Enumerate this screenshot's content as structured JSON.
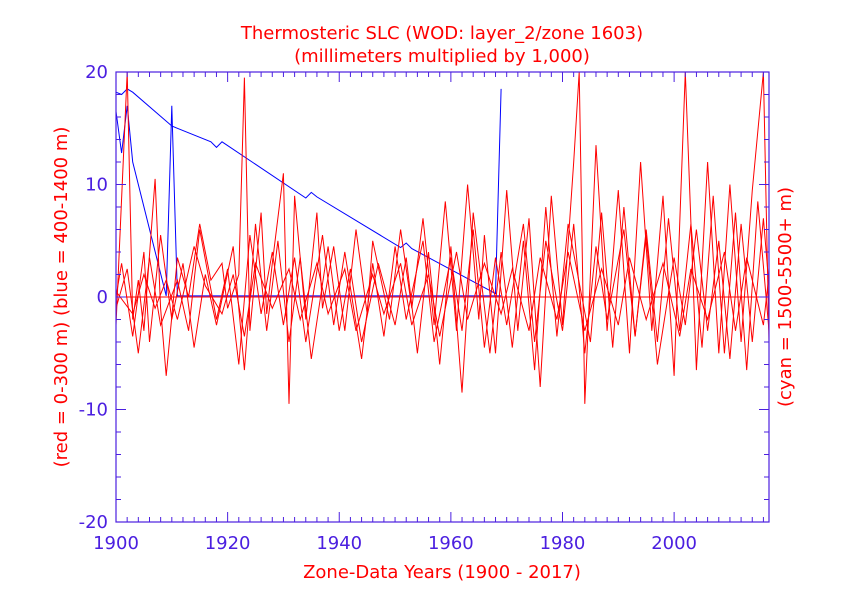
{
  "chart_data": {
    "type": "line",
    "title_line1": "Thermosteric SLC (WOD: layer_2/zone 1603)",
    "title_line2": "(millimeters multiplied by 1,000)",
    "xlabel": "Zone-Data Years (1900 - 2017)",
    "ylabel_left": "(red = 0-300 m)  (blue = 400-1400 m)",
    "ylabel_right": "(cyan = 1500-5500+ m)",
    "xlim": [
      1900,
      2017
    ],
    "ylim": [
      -20,
      20
    ],
    "x_ticks": [
      "1900",
      "1920",
      "1940",
      "1960",
      "1980",
      "2000"
    ],
    "y_ticks": [
      "20",
      "10",
      "0",
      "-10",
      "-20"
    ],
    "colors": {
      "red": "#ff0000",
      "blue": "#0000ff",
      "axis": "#4b1fe0",
      "title": "#ff0000"
    },
    "series": [
      {
        "color": "#0000ff",
        "x": [
          1900,
          1901,
          1902,
          1903,
          1910,
          1911,
          1917,
          1918,
          1919,
          1934,
          1935,
          1936,
          1951,
          1952,
          1953,
          1968,
          1969
        ],
        "values": [
          18.2,
          18.0,
          18.5,
          18.2,
          15.2,
          15.0,
          13.8,
          13.3,
          13.8,
          8.8,
          9.3,
          8.9,
          4.4,
          4.8,
          4.3,
          0.3,
          18.5
        ]
      },
      {
        "color": "#0000ff",
        "x": [
          1900,
          1901,
          1902,
          1903,
          1909,
          1910,
          1911,
          1969
        ],
        "values": [
          16.5,
          12.8,
          17.0,
          12.0,
          0.1,
          17.0,
          0.1,
          0.1
        ]
      },
      {
        "color": "#ff0000",
        "x": [
          1900,
          1902,
          1903,
          1904,
          1905,
          1907,
          1908,
          1909,
          1911,
          1913,
          1915,
          1917,
          1919,
          1920,
          1922,
          1923,
          1924,
          1926,
          1927,
          1928,
          1930,
          1931,
          1932,
          1934,
          1936,
          1937,
          1939,
          1941,
          1943,
          1945,
          1946,
          1949,
          1951,
          1953,
          1955,
          1957,
          1959,
          1961,
          1963,
          1965,
          1966,
          1968,
          1970,
          1972,
          1974,
          1976,
          1978,
          1980,
          1982,
          1983,
          1984,
          1986,
          1988,
          1990,
          1992,
          1994,
          1996,
          1998,
          2000,
          2002,
          2004,
          2006,
          2008,
          2010,
          2012,
          2014,
          2016,
          2017
        ],
        "values": [
          -2.5,
          20.0,
          -2.0,
          1.5,
          -3.0,
          10.5,
          -1.0,
          -7.0,
          3.5,
          0.0,
          6.5,
          1.5,
          3.0,
          -1.0,
          2.0,
          19.5,
          -3.0,
          7.5,
          -1.5,
          3.0,
          11.0,
          -9.5,
          9.0,
          -2.0,
          7.5,
          -1.0,
          4.5,
          -3.0,
          6.0,
          -1.5,
          5.0,
          -2.0,
          6.0,
          -1.0,
          7.0,
          -2.5,
          8.5,
          -3.0,
          10.0,
          -2.0,
          5.5,
          -5.0,
          9.5,
          -3.0,
          7.0,
          -8.0,
          9.0,
          -2.5,
          12.0,
          20.0,
          -9.5,
          13.5,
          -3.0,
          9.5,
          -5.0,
          12.0,
          -3.0,
          9.0,
          -7.0,
          20.0,
          -6.5,
          12.0,
          -5.0,
          10.0,
          -4.0,
          9.5,
          20.0,
          -4.0
        ]
      },
      {
        "color": "#ff0000",
        "x": [
          1900,
          1901,
          1903,
          1905,
          1906,
          1908,
          1910,
          1912,
          1914,
          1916,
          1918,
          1921,
          1923,
          1925,
          1927,
          1929,
          1931,
          1933,
          1935,
          1938,
          1940,
          1942,
          1944,
          1947,
          1950,
          1952,
          1954,
          1956,
          1958,
          1960,
          1962,
          1964,
          1967,
          1969,
          1971,
          1973,
          1975,
          1977,
          1979,
          1981,
          1985,
          1987,
          1989,
          1991,
          1993,
          1995,
          1997,
          1999,
          2001,
          2003,
          2005,
          2007,
          2009,
          2011,
          2013,
          2015,
          2017
        ],
        "values": [
          0.0,
          3.0,
          -3.5,
          4.0,
          -4.0,
          5.5,
          -2.0,
          3.0,
          -4.5,
          2.0,
          -2.5,
          4.5,
          -6.5,
          6.5,
          -3.0,
          5.0,
          -4.0,
          3.5,
          -5.5,
          4.5,
          -3.0,
          2.5,
          -4.0,
          3.0,
          -2.5,
          3.5,
          -5.0,
          4.0,
          -6.0,
          4.5,
          -8.5,
          7.5,
          -5.0,
          4.0,
          -4.5,
          5.0,
          -6.5,
          8.0,
          -3.5,
          6.5,
          -4.0,
          7.5,
          -4.5,
          8.0,
          -3.5,
          6.0,
          -4.0,
          7.0,
          -3.0,
          6.5,
          -4.5,
          9.0,
          -5.0,
          7.5,
          -6.5,
          8.5,
          -3.0
        ]
      },
      {
        "color": "#ff0000",
        "x": [
          1900,
          1902,
          1904,
          1906,
          1908,
          1911,
          1913,
          1915,
          1918,
          1920,
          1922,
          1924,
          1926,
          1928,
          1930,
          1932,
          1934,
          1937,
          1939,
          1941,
          1944,
          1946,
          1948,
          1950,
          1952,
          1955,
          1957,
          1960,
          1962,
          1964,
          1966,
          1968,
          1970,
          1973,
          1975,
          1977,
          1980,
          1982,
          1984,
          1986,
          1988,
          1991,
          1993,
          1995,
          1997,
          2000,
          2002,
          2004,
          2006,
          2008,
          2010,
          2012,
          2014,
          2016,
          2017
        ],
        "values": [
          -1.0,
          2.5,
          -5.0,
          3.5,
          -2.5,
          1.5,
          -3.0,
          6.0,
          -2.0,
          2.5,
          -6.0,
          5.5,
          -1.5,
          4.0,
          -2.5,
          3.5,
          -4.0,
          5.5,
          -2.5,
          4.0,
          -5.5,
          3.0,
          -3.5,
          4.5,
          -2.0,
          5.0,
          -4.0,
          3.5,
          -3.0,
          6.0,
          -4.5,
          3.5,
          -2.5,
          6.5,
          -4.0,
          5.0,
          -3.0,
          6.5,
          -5.0,
          4.5,
          -2.0,
          6.0,
          -3.5,
          5.5,
          -6.0,
          3.5,
          -2.5,
          6.0,
          -3.0,
          5.0,
          -5.5,
          6.5,
          -4.0,
          7.0,
          1.0
        ]
      },
      {
        "color": "#ff0000",
        "x": [
          1900,
          1903,
          1905,
          1907,
          1909,
          1911,
          1914,
          1916,
          1919,
          1921,
          1923,
          1925,
          1928,
          1931,
          1933,
          1936,
          1938,
          1941,
          1943,
          1946,
          1948,
          1951,
          1953,
          1956,
          1958,
          1961,
          1963,
          1966,
          1969,
          1971,
          1974,
          1976,
          1979,
          1981,
          1984,
          1987,
          1990,
          1992,
          1995,
          1998,
          2001,
          2003,
          2006,
          2009,
          2011,
          2013,
          2016,
          2017
        ],
        "values": [
          0.5,
          -1.5,
          2.0,
          -1.0,
          1.5,
          -2.0,
          4.5,
          1.0,
          -1.5,
          2.0,
          -3.5,
          3.0,
          -1.0,
          2.5,
          -2.0,
          3.0,
          -1.5,
          2.5,
          -3.0,
          2.0,
          -1.5,
          3.0,
          -2.5,
          2.0,
          -3.5,
          4.0,
          -2.0,
          3.0,
          -1.5,
          2.5,
          -3.0,
          3.5,
          -2.0,
          4.0,
          -3.0,
          2.5,
          -2.5,
          3.5,
          -2.0,
          3.0,
          -3.5,
          2.5,
          -2.0,
          4.0,
          -3.0,
          3.5,
          -2.5,
          2.0
        ]
      },
      {
        "color": "#ff0000",
        "x": [
          1900,
          1969,
          2017
        ],
        "values": [
          0.0,
          0.0,
          0.0
        ]
      }
    ]
  }
}
